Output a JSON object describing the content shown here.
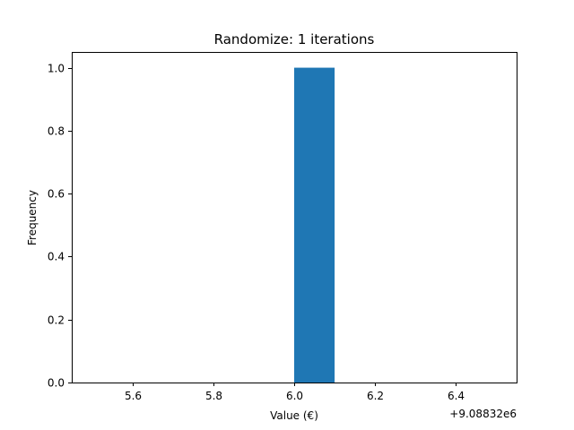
{
  "chart_data": {
    "type": "bar",
    "title": "Randomize: 1 iterations",
    "xlabel": "Value (€)",
    "ylabel": "Frequency",
    "x_offset_label": "+9.08832e6",
    "xlim": [
      5.45,
      6.55
    ],
    "ylim": [
      0,
      1.05
    ],
    "x_ticks": [
      5.6,
      5.8,
      6.0,
      6.2,
      6.4
    ],
    "x_tick_labels": [
      "5.6",
      "5.8",
      "6.0",
      "6.2",
      "6.4"
    ],
    "y_ticks": [
      0,
      0.2,
      0.4,
      0.6,
      0.8,
      1.0
    ],
    "y_tick_labels": [
      "0.0",
      "0.2",
      "0.4",
      "0.6",
      "0.8",
      "1.0"
    ],
    "bars": [
      {
        "x_start": 6.0,
        "x_end": 6.1,
        "value": 1
      }
    ],
    "bar_color": "#1f77b4",
    "grid": false,
    "legend": false
  }
}
